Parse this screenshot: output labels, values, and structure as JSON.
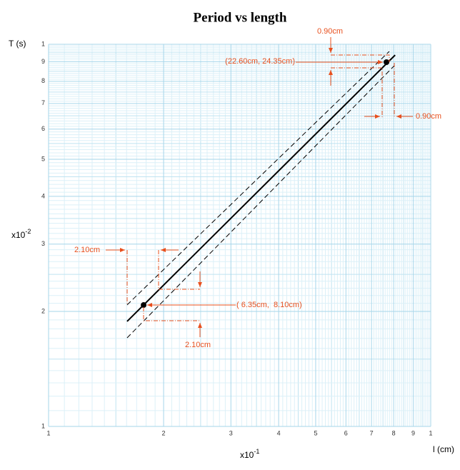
{
  "chart_data": {
    "type": "line",
    "title": "Period vs length",
    "x_label": "l (cm)",
    "y_label": "T (s)",
    "x_multiplier": {
      "base": "x10",
      "exponent": "-1"
    },
    "y_multiplier": {
      "base": "x10",
      "exponent": "-2"
    },
    "log_x": true,
    "log_y": true,
    "grid": true,
    "xlim": [
      1,
      10
    ],
    "ylim": [
      1,
      10
    ],
    "xticks": [
      1,
      2,
      3,
      4,
      5,
      6,
      7,
      8,
      9,
      {
        "value": 10,
        "label": "1"
      }
    ],
    "yticks": [
      1,
      2,
      3,
      4,
      5,
      6,
      7,
      8,
      9,
      {
        "value": 10,
        "label": "1"
      }
    ],
    "series": [
      {
        "color": "#000000",
        "style": "solid",
        "x": [
          1.605,
          8.07
        ],
        "values": [
          1.883,
          9.37
        ]
      },
      {
        "color": "#000000",
        "style": "dashed",
        "x": [
          1.605,
          7.79
        ],
        "values": [
          2.08,
          9.58
        ]
      },
      {
        "color": "#000000",
        "style": "dashed",
        "x": [
          1.605,
          8.03
        ],
        "values": [
          1.705,
          8.79
        ]
      }
    ],
    "points": {
      "color": "#000000",
      "x": [
        1.773,
        7.66
      ],
      "values": [
        2.078,
        8.98
      ]
    },
    "annotations": [
      "0.90cm",
      "(22.60cm, 24.35cm)",
      "0.90cm",
      "2.10cm",
      "( 6.35cm,  8.10cm)",
      "2.10cm"
    ]
  }
}
